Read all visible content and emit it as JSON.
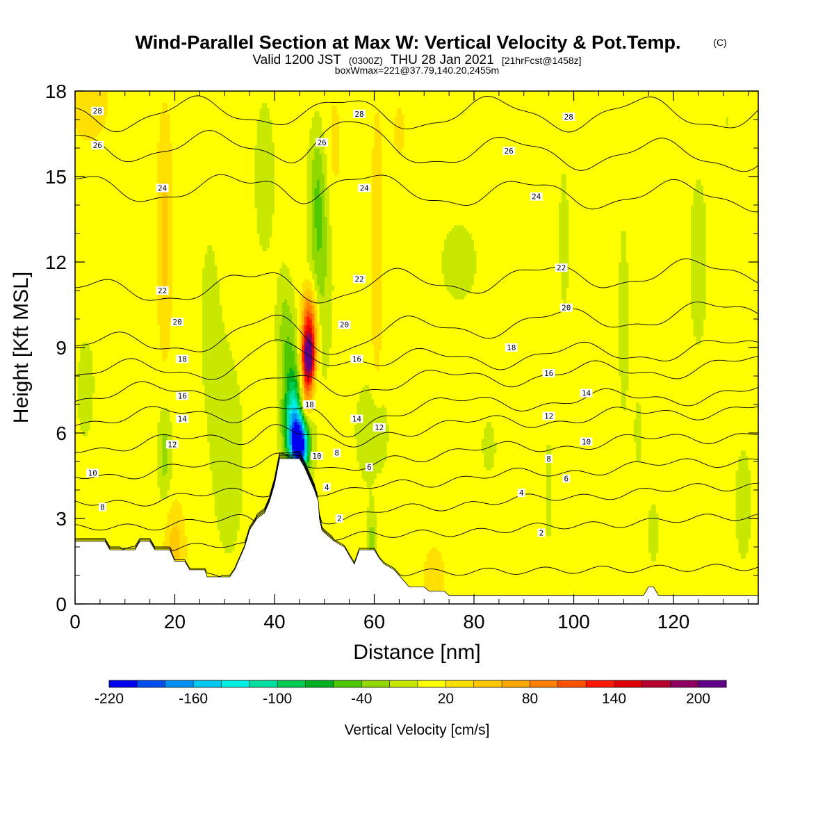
{
  "chart_data": {
    "type": "heatmap",
    "title": "Wind-Parallel Section at Max W: Vertical Velocity & Pot.Temp.",
    "title_mark": "(C)",
    "subtitle_parts": [
      "Valid 1200 JST",
      "(0300Z)",
      "THU 28 Jan 2021",
      "[21hrFcst@1458z]"
    ],
    "subtitle2": "boxWmax=221@37.79,140.20,2455m",
    "xlabel": "Distance [nm]",
    "ylabel": "Height [Kft MSL]",
    "xlim": [
      0,
      137
    ],
    "ylim": [
      0,
      18
    ],
    "xticks": [
      0,
      20,
      40,
      60,
      80,
      100,
      120
    ],
    "yticks": [
      0,
      3,
      6,
      9,
      12,
      15,
      18
    ],
    "colorbar": {
      "label": "Vertical Velocity [cm/s]",
      "levels": [
        -220,
        -200,
        -180,
        -160,
        -140,
        -120,
        -100,
        -80,
        -60,
        -40,
        -20,
        0,
        20,
        40,
        60,
        80,
        100,
        120,
        140,
        160,
        180,
        200,
        220
      ],
      "tick_labels": [
        "-220",
        "-160",
        "-100",
        "-40",
        "20",
        "80",
        "140",
        "200"
      ],
      "tick_values": [
        -220,
        -160,
        -100,
        -40,
        20,
        80,
        140,
        200
      ],
      "colors": [
        "#0000f0",
        "#0050f0",
        "#0090f0",
        "#00c8f0",
        "#00f0e6",
        "#00e0a0",
        "#00cc55",
        "#00b020",
        "#50c800",
        "#90d800",
        "#c8e800",
        "#ffff00",
        "#ffe000",
        "#ffc800",
        "#ffa800",
        "#ff8000",
        "#ff5000",
        "#ff1800",
        "#e00000",
        "#b80030",
        "#900060",
        "#600088"
      ]
    },
    "velocity_features": [
      {
        "x": 45.0,
        "z": 5.5,
        "w": -210,
        "sx": 1.8,
        "sz": 0.9
      },
      {
        "x": 44.0,
        "z": 6.4,
        "w": -120,
        "sx": 2.2,
        "sz": 1.3
      },
      {
        "x": 43.5,
        "z": 8.0,
        "w": -50,
        "sx": 1.8,
        "sz": 2.0
      },
      {
        "x": 42.0,
        "z": 9.8,
        "w": -30,
        "sx": 1.5,
        "sz": 1.8
      },
      {
        "x": 46.8,
        "z": 8.6,
        "w": 215,
        "sx": 1.3,
        "sz": 0.9
      },
      {
        "x": 47.0,
        "z": 9.9,
        "w": 110,
        "sx": 1.6,
        "sz": 1.2
      },
      {
        "x": 46.3,
        "z": 7.2,
        "w": 80,
        "sx": 1.3,
        "sz": 0.8
      },
      {
        "x": 49.0,
        "z": 12.5,
        "w": -42,
        "sx": 1.9,
        "sz": 3.2
      },
      {
        "x": 48.5,
        "z": 14.8,
        "w": -25,
        "sx": 1.6,
        "sz": 2.0
      },
      {
        "x": 54.0,
        "z": 7.0,
        "w": -8,
        "sx": 9.0,
        "sz": 9.0
      },
      {
        "x": 18.0,
        "z": 5.3,
        "w": -40,
        "sx": 1.4,
        "sz": 1.6
      },
      {
        "x": 18.0,
        "z": 13.0,
        "w": 38,
        "sx": 1.5,
        "sz": 4.0
      },
      {
        "x": 20.0,
        "z": 2.0,
        "w": 40,
        "sx": 2.0,
        "sz": 1.5
      },
      {
        "x": 31.0,
        "z": 5.0,
        "w": -22,
        "sx": 3.0,
        "sz": 3.5
      },
      {
        "x": 27.0,
        "z": 10.0,
        "w": -12,
        "sx": 4.0,
        "sz": 6.0
      },
      {
        "x": 60.0,
        "z": 6.0,
        "w": -25,
        "sx": 2.5,
        "sz": 1.5
      },
      {
        "x": 60.5,
        "z": 12.0,
        "w": 32,
        "sx": 1.2,
        "sz": 5.0
      },
      {
        "x": 59.5,
        "z": 2.0,
        "w": -40,
        "sx": 0.8,
        "sz": 1.2
      },
      {
        "x": 2.0,
        "z": 7.5,
        "w": -15,
        "sx": 2.5,
        "sz": 2.5
      },
      {
        "x": 8.0,
        "z": 12.0,
        "w": -10,
        "sx": 4.0,
        "sz": 4.0
      },
      {
        "x": 3.0,
        "z": 17.5,
        "w": 30,
        "sx": 3.5,
        "sz": 1.2
      },
      {
        "x": 38.0,
        "z": 15.0,
        "w": -15,
        "sx": 3.0,
        "sz": 4.0
      },
      {
        "x": 77.0,
        "z": 12.0,
        "w": -12,
        "sx": 8.0,
        "sz": 3.0
      },
      {
        "x": 83.0,
        "z": 5.5,
        "w": -12,
        "sx": 3.0,
        "sz": 2.0
      },
      {
        "x": 95.0,
        "z": 4.0,
        "w": -14,
        "sx": 1.0,
        "sz": 3.0
      },
      {
        "x": 98.0,
        "z": 13.0,
        "w": -12,
        "sx": 2.0,
        "sz": 5.0
      },
      {
        "x": 103.0,
        "z": 9.5,
        "w": -10,
        "sx": 3.0,
        "sz": 3.0
      },
      {
        "x": 110.0,
        "z": 10.0,
        "w": -15,
        "sx": 1.5,
        "sz": 5.0
      },
      {
        "x": 113.0,
        "z": 6.0,
        "w": -12,
        "sx": 1.5,
        "sz": 2.5
      },
      {
        "x": 116.0,
        "z": 2.5,
        "w": -30,
        "sx": 1.0,
        "sz": 1.0
      },
      {
        "x": 125.0,
        "z": 12.0,
        "w": -14,
        "sx": 3.0,
        "sz": 5.0
      },
      {
        "x": 134.0,
        "z": 3.5,
        "w": -15,
        "sx": 2.5,
        "sz": 3.0
      },
      {
        "x": 131.0,
        "z": 17.0,
        "w": -10,
        "sx": 3.0,
        "sz": 2.0
      },
      {
        "x": 72.0,
        "z": 1.0,
        "w": 28,
        "sx": 2.0,
        "sz": 1.0
      },
      {
        "x": 65.0,
        "z": 16.5,
        "w": 12,
        "sx": 3.0,
        "sz": 2.5
      },
      {
        "x": 52.0,
        "z": 16.0,
        "w": 18,
        "sx": 2.0,
        "sz": 2.5
      }
    ],
    "terrain": [
      [
        0,
        2.2
      ],
      [
        6,
        2.2
      ],
      [
        7,
        1.9
      ],
      [
        12,
        1.9
      ],
      [
        13,
        2.2
      ],
      [
        15,
        2.2
      ],
      [
        16,
        1.9
      ],
      [
        19,
        1.9
      ],
      [
        20,
        1.5
      ],
      [
        22,
        1.5
      ],
      [
        23,
        1.2
      ],
      [
        26,
        1.2
      ],
      [
        26.5,
        0.95
      ],
      [
        31,
        0.95
      ],
      [
        32,
        1.2
      ],
      [
        33,
        1.6
      ],
      [
        34,
        2.0
      ],
      [
        35,
        2.6
      ],
      [
        36.5,
        3.0
      ],
      [
        38,
        3.2
      ],
      [
        39,
        3.6
      ],
      [
        40,
        4.2
      ],
      [
        41,
        5.1
      ],
      [
        45,
        5.1
      ],
      [
        46,
        4.8
      ],
      [
        47,
        4.4
      ],
      [
        48,
        4.0
      ],
      [
        48.8,
        3.6
      ],
      [
        49,
        3.0
      ],
      [
        49.5,
        2.6
      ],
      [
        50,
        2.5
      ],
      [
        52,
        2.2
      ],
      [
        54,
        2.0
      ],
      [
        55,
        1.7
      ],
      [
        56,
        1.4
      ],
      [
        57,
        1.9
      ],
      [
        60,
        1.9
      ],
      [
        61,
        1.6
      ],
      [
        62,
        1.4
      ],
      [
        64,
        1.2
      ],
      [
        65,
        1.0
      ],
      [
        66,
        0.8
      ],
      [
        67,
        0.6
      ],
      [
        70,
        0.6
      ],
      [
        71,
        0.45
      ],
      [
        74,
        0.45
      ],
      [
        75,
        0.3
      ],
      [
        114,
        0.3
      ],
      [
        115,
        0.6
      ],
      [
        116,
        0.6
      ],
      [
        117,
        0.3
      ],
      [
        137,
        0.3
      ]
    ],
    "theta_contours": {
      "levels": [
        2,
        4,
        6,
        8,
        10,
        12,
        14,
        16,
        18,
        20,
        22,
        24,
        26,
        28
      ],
      "heights_far_left": [
        0.9,
        1.8,
        2.6,
        3.5,
        4.5,
        5.5,
        6.5,
        7.3,
        8.1,
        9.0,
        10.9,
        14.6,
        16.1,
        17.2
      ],
      "heights_far_right": [
        1.3,
        3.1,
        4.2,
        5.1,
        6.0,
        6.9,
        7.4,
        8.4,
        9.0,
        10.3,
        11.7,
        14.3,
        15.7,
        17.2
      ],
      "heights_lee": [
        1.7,
        3.2,
        3.9,
        4.8,
        5.4,
        6.3,
        6.5,
        8.2,
        9.3,
        9.9,
        11.4,
        14.6,
        16.4,
        17.2
      ],
      "heights_windward": [
        0.3,
        1.2,
        2.2,
        3.5,
        4.9,
        5.9,
        6.6,
        7.5,
        8.8,
        9.5,
        11.2,
        14.9,
        16.2,
        17.4
      ]
    },
    "contour_labels": [
      {
        "text": "28",
        "x": 4.5,
        "z": 17.3
      },
      {
        "text": "26",
        "x": 4.5,
        "z": 16.1
      },
      {
        "text": "24",
        "x": 17.5,
        "z": 14.6
      },
      {
        "text": "22",
        "x": 17.5,
        "z": 11.0
      },
      {
        "text": "20",
        "x": 20.5,
        "z": 9.9
      },
      {
        "text": "18",
        "x": 21.5,
        "z": 8.6
      },
      {
        "text": "16",
        "x": 21.5,
        "z": 7.3
      },
      {
        "text": "14",
        "x": 21.5,
        "z": 6.5
      },
      {
        "text": "12",
        "x": 19.5,
        "z": 5.6
      },
      {
        "text": "10",
        "x": 3.5,
        "z": 4.6
      },
      {
        "text": "8",
        "x": 5.5,
        "z": 3.4
      },
      {
        "text": "28",
        "x": 57.0,
        "z": 17.2
      },
      {
        "text": "26",
        "x": 49.5,
        "z": 16.2
      },
      {
        "text": "24",
        "x": 58.0,
        "z": 14.6
      },
      {
        "text": "22",
        "x": 57.0,
        "z": 11.4
      },
      {
        "text": "20",
        "x": 54.0,
        "z": 9.8
      },
      {
        "text": "16",
        "x": 56.5,
        "z": 8.6
      },
      {
        "text": "18",
        "x": 47.0,
        "z": 7.0
      },
      {
        "text": "14",
        "x": 56.5,
        "z": 6.5
      },
      {
        "text": "12",
        "x": 61.0,
        "z": 6.2
      },
      {
        "text": "10",
        "x": 48.5,
        "z": 5.2
      },
      {
        "text": "8",
        "x": 52.5,
        "z": 5.3
      },
      {
        "text": "6",
        "x": 59.0,
        "z": 4.8
      },
      {
        "text": "4",
        "x": 50.5,
        "z": 4.1
      },
      {
        "text": "2",
        "x": 53.0,
        "z": 3.0
      },
      {
        "text": "28",
        "x": 99.0,
        "z": 17.1
      },
      {
        "text": "26",
        "x": 87.0,
        "z": 15.9
      },
      {
        "text": "24",
        "x": 92.5,
        "z": 14.3
      },
      {
        "text": "22",
        "x": 97.5,
        "z": 11.8
      },
      {
        "text": "20",
        "x": 98.5,
        "z": 10.4
      },
      {
        "text": "18",
        "x": 87.5,
        "z": 9.0
      },
      {
        "text": "16",
        "x": 95.0,
        "z": 8.1
      },
      {
        "text": "14",
        "x": 102.5,
        "z": 7.4
      },
      {
        "text": "12",
        "x": 95.0,
        "z": 6.6
      },
      {
        "text": "10",
        "x": 102.5,
        "z": 5.7
      },
      {
        "text": "8",
        "x": 95.0,
        "z": 5.1
      },
      {
        "text": "6",
        "x": 98.5,
        "z": 4.4
      },
      {
        "text": "4",
        "x": 89.5,
        "z": 3.9
      },
      {
        "text": "2",
        "x": 93.5,
        "z": 2.5
      }
    ]
  }
}
